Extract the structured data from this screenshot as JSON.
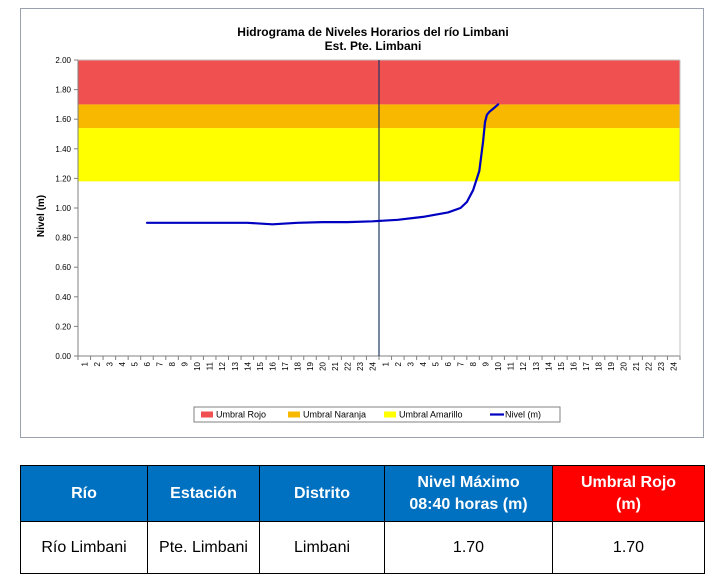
{
  "colors": {
    "umbral_rojo": "#f0504f",
    "umbral_naranja": "#f9b800",
    "umbral_amarillo": "#ffff00",
    "nivel_line": "#0000c0",
    "table_header_blue": "#0070c0",
    "table_header_red": "#ff0000"
  },
  "chart_data": {
    "type": "line",
    "title": "Hidrograma de Niveles Horarios del río Limbani",
    "subtitle": "Est. Pte. Limbani",
    "ylabel": "Nivel (m)",
    "xlabel": "",
    "ylim": [
      0,
      2
    ],
    "y_ticks": [
      "0.00",
      "0.20",
      "0.40",
      "0.60",
      "0.80",
      "1.00",
      "1.20",
      "1.40",
      "1.60",
      "1.80",
      "2.00"
    ],
    "x_ticks": [
      "1",
      "2",
      "3",
      "4",
      "5",
      "6",
      "7",
      "8",
      "9",
      "10",
      "11",
      "12",
      "13",
      "14",
      "15",
      "16",
      "17",
      "18",
      "19",
      "20",
      "21",
      "22",
      "23",
      "24",
      "1",
      "2",
      "3",
      "4",
      "5",
      "6",
      "7",
      "8",
      "9",
      "10",
      "11",
      "12",
      "13",
      "14",
      "15",
      "16",
      "17",
      "18",
      "19",
      "20",
      "21",
      "22",
      "23",
      "24"
    ],
    "day_divider_hour": 24.5,
    "bands": [
      {
        "name": "Umbral Amarillo",
        "from": 1.18,
        "to": 1.54,
        "color": "#ffff00"
      },
      {
        "name": "Umbral Naranja",
        "from": 1.54,
        "to": 1.7,
        "color": "#f9b800"
      },
      {
        "name": "Umbral Rojo",
        "from": 1.7,
        "to": 2.0,
        "color": "#f0504f"
      }
    ],
    "series": [
      {
        "name": "Nivel (m)",
        "x": [
          6,
          8,
          10,
          12,
          14,
          16,
          18,
          20,
          22,
          24,
          26,
          28,
          29,
          30,
          31,
          31.5,
          32,
          32.5,
          32.8,
          32.95,
          33.1,
          33.3,
          33.6,
          34
        ],
        "values": [
          0.9,
          0.9,
          0.9,
          0.9,
          0.9,
          0.89,
          0.9,
          0.905,
          0.905,
          0.91,
          0.92,
          0.94,
          0.955,
          0.97,
          1.0,
          1.04,
          1.12,
          1.25,
          1.45,
          1.58,
          1.63,
          1.65,
          1.67,
          1.7
        ]
      }
    ],
    "legend": [
      "Umbral Rojo",
      "Umbral Naranja",
      "Umbral Amarillo",
      "Nivel (m)"
    ],
    "legend_position": "bottom",
    "grid": false
  },
  "table": {
    "headers": {
      "rio": "Río",
      "estacion": "Estación",
      "distrito": "Distrito",
      "nivel_maximo_line1": "Nivel Máximo",
      "nivel_maximo_line2": "08:40 horas (m)",
      "umbral_rojo_line1": "Umbral Rojo",
      "umbral_rojo_line2": "(m)"
    },
    "row": {
      "rio": "Río Limbani",
      "estacion": "Pte. Limbani",
      "distrito": "Limbani",
      "nivel_maximo": "1.70",
      "umbral_rojo": "1.70"
    }
  }
}
